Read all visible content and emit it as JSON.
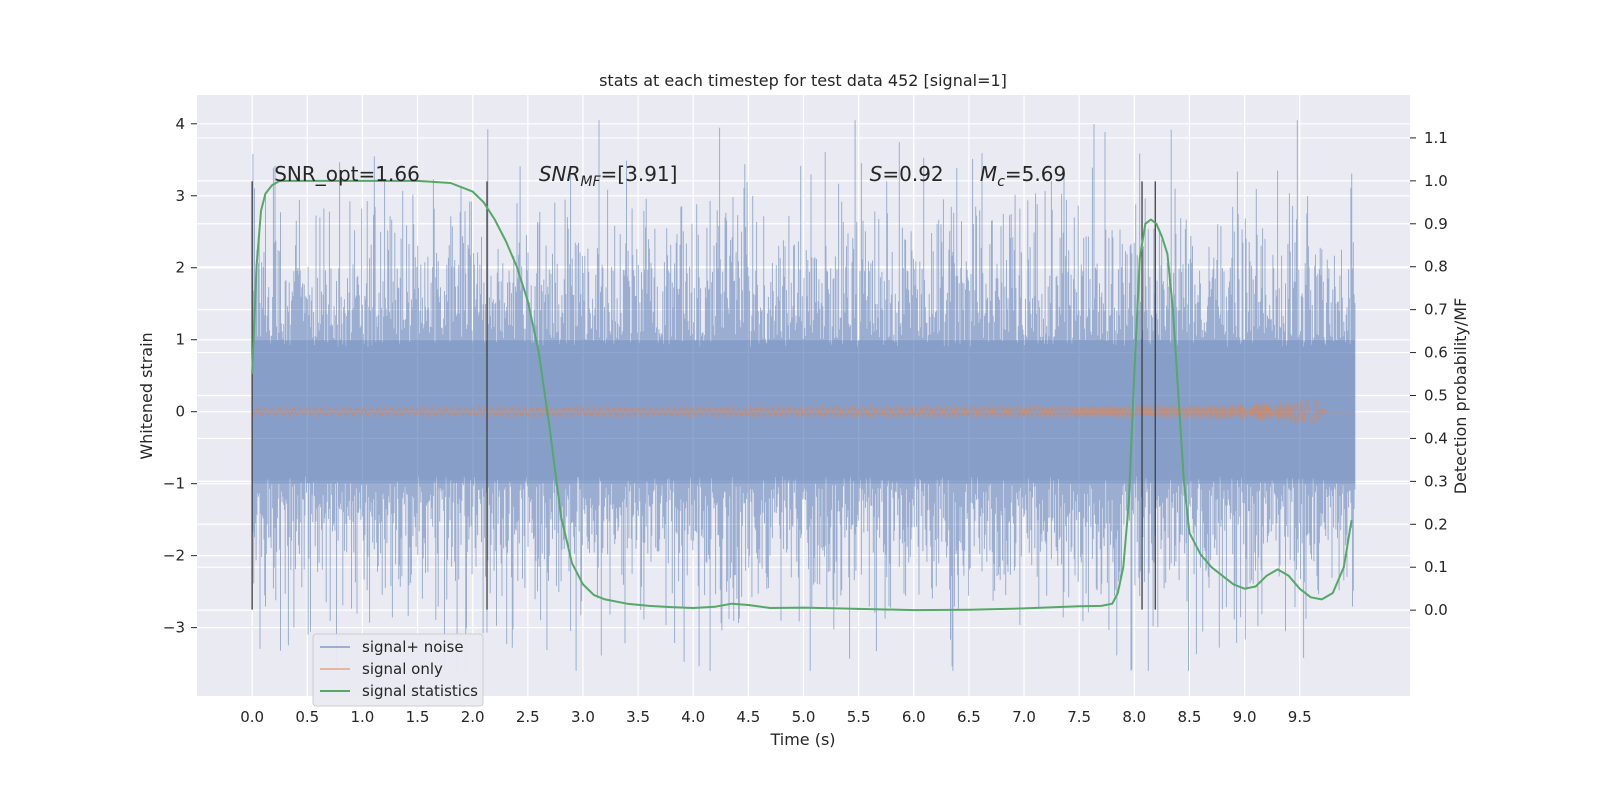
{
  "chart_data": {
    "type": "line",
    "title": "stats at each timestep for test data 452 [signal=1]",
    "xlabel": "Time (s)",
    "ylabel_left": "Whitened strain",
    "ylabel_right": "Detection probability/MF",
    "xlim": [
      -0.5,
      10.5
    ],
    "ylim_left": [
      -3.95,
      4.4
    ],
    "ylim_right": [
      -0.2,
      1.2
    ],
    "x_ticks": [
      "0.0",
      "0.5",
      "1.0",
      "1.5",
      "2.0",
      "2.5",
      "3.0",
      "3.5",
      "4.0",
      "4.5",
      "5.0",
      "5.5",
      "6.0",
      "6.5",
      "7.0",
      "7.5",
      "8.0",
      "8.5",
      "9.0",
      "9.5"
    ],
    "x_tick_values": [
      0,
      0.5,
      1,
      1.5,
      2,
      2.5,
      3,
      3.5,
      4,
      4.5,
      5,
      5.5,
      6,
      6.5,
      7,
      7.5,
      8,
      8.5,
      9,
      9.5
    ],
    "y_ticks_left": [
      "4",
      "3",
      "2",
      "1",
      "0",
      "−1",
      "−2",
      "−3"
    ],
    "y_tick_values_left": [
      4,
      3,
      2,
      1,
      0,
      -1,
      -2,
      -3
    ],
    "y_ticks_right": [
      "1.1",
      "1.0",
      "0.9",
      "0.8",
      "0.7",
      "0.6",
      "0.5",
      "0.4",
      "0.3",
      "0.2",
      "0.1",
      "0.0"
    ],
    "y_tick_values_right": [
      1.1,
      1.0,
      0.9,
      0.8,
      0.7,
      0.6,
      0.5,
      0.4,
      0.3,
      0.2,
      0.1,
      0.0
    ],
    "grid": true,
    "legend_position": "bottom-left",
    "series": [
      {
        "name": "signal+ noise",
        "color": "#4c72b0",
        "axis": "left",
        "kind": "noisy-strain",
        "duration": 10.0,
        "sigma": 1.0
      },
      {
        "name": "signal only",
        "color": "#dd8452",
        "axis": "left",
        "kind": "chirp",
        "merger_time": 9.65,
        "peak_amplitude": 0.22
      },
      {
        "name": "signal statistics",
        "color": "#55a868",
        "axis": "right",
        "x": [
          0,
          0.04,
          0.08,
          0.12,
          0.18,
          0.25,
          0.35,
          0.5,
          0.8,
          1.2,
          1.5,
          1.8,
          2.0,
          2.1,
          2.2,
          2.3,
          2.4,
          2.5,
          2.6,
          2.7,
          2.8,
          2.9,
          3.0,
          3.1,
          3.2,
          3.4,
          3.6,
          3.8,
          4.0,
          4.2,
          4.35,
          4.5,
          4.7,
          5.0,
          5.5,
          6.0,
          6.5,
          7.0,
          7.5,
          7.7,
          7.8,
          7.85,
          7.9,
          7.95,
          8.0,
          8.05,
          8.1,
          8.15,
          8.2,
          8.25,
          8.3,
          8.35,
          8.4,
          8.45,
          8.5,
          8.6,
          8.7,
          8.8,
          8.9,
          9.0,
          9.1,
          9.2,
          9.3,
          9.4,
          9.5,
          9.6,
          9.7,
          9.8,
          9.9,
          9.97
        ],
        "y": [
          0.55,
          0.8,
          0.93,
          0.97,
          0.99,
          1.0,
          1.0,
          1.0,
          1.0,
          1.0,
          1.0,
          0.995,
          0.975,
          0.95,
          0.91,
          0.86,
          0.8,
          0.72,
          0.6,
          0.42,
          0.22,
          0.11,
          0.06,
          0.035,
          0.025,
          0.015,
          0.01,
          0.007,
          0.005,
          0.008,
          0.015,
          0.012,
          0.005,
          0.006,
          0.003,
          0.0,
          0.001,
          0.004,
          0.009,
          0.01,
          0.015,
          0.04,
          0.1,
          0.25,
          0.55,
          0.82,
          0.9,
          0.91,
          0.9,
          0.87,
          0.83,
          0.7,
          0.5,
          0.3,
          0.18,
          0.13,
          0.1,
          0.08,
          0.06,
          0.05,
          0.055,
          0.08,
          0.095,
          0.08,
          0.05,
          0.03,
          0.025,
          0.04,
          0.1,
          0.21
        ]
      }
    ],
    "vertical_lines": [
      0.0,
      2.13,
      8.07,
      8.19
    ],
    "annotations": [
      {
        "text": "SNR_opt=1.66",
        "x": 0.2
      },
      {
        "text": "SNR",
        "sub": "MF",
        "rest": "=[3.91]",
        "x": 2.6
      },
      {
        "text": "S",
        "rest": "=0.92",
        "x": 5.6
      },
      {
        "text": "M",
        "sub": "c",
        "rest": "=5.69",
        "x": 6.6
      }
    ],
    "colors": {
      "axes_bg": "#eaeaf2",
      "grid": "#ffffff",
      "vline": "#404040"
    }
  }
}
